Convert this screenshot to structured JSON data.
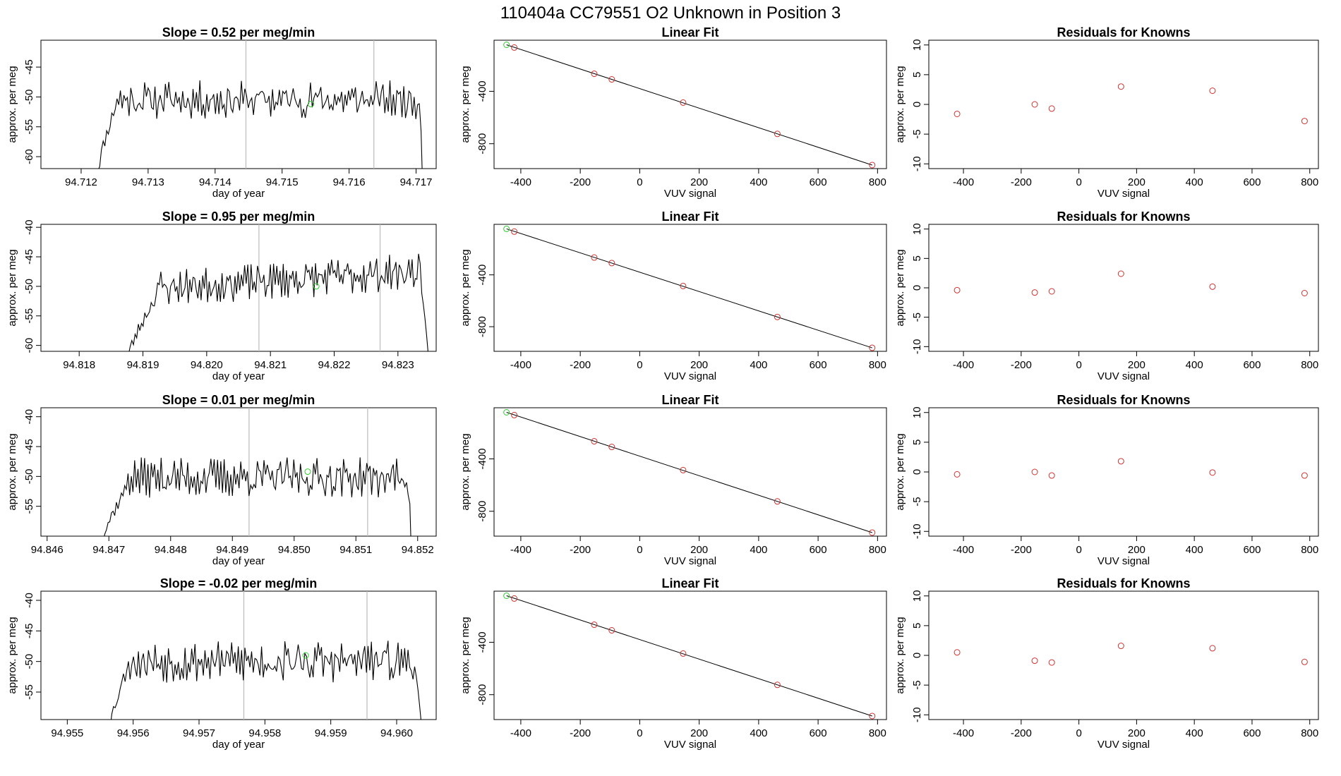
{
  "figure_title": "110404a      CC79551    O2 Unknown in Position  3",
  "colors": {
    "line": "#000000",
    "known_point": "#cc3333",
    "unknown_point": "#33cc33",
    "marker_line": "#bbbbbb"
  },
  "chart_data": [
    {
      "row": 1,
      "time_series": {
        "type": "line",
        "title": "Slope =  0.52  per meg/min",
        "xlabel": "day of year",
        "ylabel": "approx. per meg",
        "xlim": [
          94.7114,
          94.7173
        ],
        "ylim": [
          -62,
          -40.5
        ],
        "xticks": [
          "94.712",
          "94.713",
          "94.714",
          "94.715",
          "94.716",
          "94.717"
        ],
        "yticks": [
          "-60",
          "-55",
          "-50",
          "-45"
        ],
        "start": 94.7122,
        "end": 94.7171,
        "plateau_start": 94.7125,
        "plateau_end": 94.71705,
        "base": -50.5,
        "amp": 2.4,
        "seed": 11,
        "vlines": [
          94.71446,
          94.71637
        ],
        "unknown_point": {
          "x": 94.71543,
          "y": -51.2
        }
      },
      "linear_fit": {
        "type": "scatter",
        "title": "Linear Fit",
        "xlabel": "VUV signal",
        "ylabel": "approx. per meg",
        "xlim": [
          -490,
          830
        ],
        "ylim": [
          -990,
          -10
        ],
        "xticks": [
          "-400",
          "-200",
          "0",
          "200",
          "400",
          "600",
          "800"
        ],
        "yticks": [
          "-400",
          "-800"
        ],
        "fit_line": {
          "x": [
            -448,
            782
          ],
          "y": [
            -45,
            -963
          ]
        },
        "knowns": {
          "x": [
            -422,
            -153,
            -94,
            146,
            463,
            782
          ],
          "y": [
            -66,
            -266,
            -309,
            -486,
            -725,
            -963
          ]
        },
        "unknown": {
          "x": -448,
          "y": -45
        }
      },
      "residuals": {
        "type": "scatter",
        "title": "Residuals for Knowns",
        "xlabel": "VUV signal",
        "ylabel": "approx. per meg",
        "xlim": [
          -520,
          830
        ],
        "ylim": [
          -10.8,
          10.8
        ],
        "xticks": [
          "-400",
          "-200",
          "0",
          "200",
          "400",
          "600",
          "800"
        ],
        "yticks": [
          "-10",
          "-5",
          "0",
          "5",
          "10"
        ],
        "x": [
          -422,
          -153,
          -94,
          146,
          463,
          782
        ],
        "y": [
          -1.6,
          0.0,
          -0.7,
          3.0,
          2.3,
          -2.8
        ]
      }
    },
    {
      "row": 2,
      "time_series": {
        "type": "line",
        "title": "Slope =  0.95  per meg/min",
        "xlabel": "day of year",
        "ylabel": "approx. per meg",
        "xlim": [
          94.8174,
          94.8236
        ],
        "ylim": [
          -61,
          -39.5
        ],
        "xticks": [
          "94.818",
          "94.819",
          "94.820",
          "94.821",
          "94.822",
          "94.823"
        ],
        "yticks": [
          "-60",
          "-55",
          "-50",
          "-45",
          "-40"
        ],
        "start": 94.8187,
        "end": 94.8235,
        "plateau_start": 94.8192,
        "plateau_end": 94.82335,
        "base": -50.3,
        "amp": 2.3,
        "trend": 2.8,
        "seed": 23,
        "vlines": [
          94.82082,
          94.82272
        ],
        "unknown_point": {
          "x": 94.82172,
          "y": -50.0
        }
      },
      "linear_fit": {
        "type": "scatter",
        "title": "Linear Fit",
        "xlabel": "VUV signal",
        "ylabel": "approx. per meg",
        "xlim": [
          -490,
          830
        ],
        "ylim": [
          -990,
          -10
        ],
        "xticks": [
          "-400",
          "-200",
          "0",
          "200",
          "400",
          "600",
          "800"
        ],
        "yticks": [
          "-400",
          "-800"
        ],
        "fit_line": {
          "x": [
            -448,
            782
          ],
          "y": [
            -45,
            -963
          ]
        },
        "knowns": {
          "x": [
            -422,
            -153,
            -94,
            146,
            463,
            782
          ],
          "y": [
            -66,
            -266,
            -309,
            -486,
            -725,
            -963
          ]
        },
        "unknown": {
          "x": -448,
          "y": -45
        }
      },
      "residuals": {
        "type": "scatter",
        "title": "Residuals for Knowns",
        "xlabel": "VUV signal",
        "ylabel": "approx. per meg",
        "xlim": [
          -520,
          830
        ],
        "ylim": [
          -10.8,
          10.8
        ],
        "xticks": [
          "-400",
          "-200",
          "0",
          "200",
          "400",
          "600",
          "800"
        ],
        "yticks": [
          "-10",
          "-5",
          "0",
          "5",
          "10"
        ],
        "x": [
          -422,
          -153,
          -94,
          146,
          463,
          782
        ],
        "y": [
          -0.4,
          -0.8,
          -0.6,
          2.4,
          0.2,
          -0.9
        ]
      }
    },
    {
      "row": 3,
      "time_series": {
        "type": "line",
        "title": "Slope =  0.01  per meg/min",
        "xlabel": "day of year",
        "ylabel": "approx. per meg",
        "xlim": [
          94.8459,
          94.8523
        ],
        "ylim": [
          -60,
          -38.5
        ],
        "xticks": [
          "94.846",
          "94.847",
          "94.848",
          "94.849",
          "94.850",
          "94.851",
          "94.852"
        ],
        "yticks": [
          "-55",
          "-50",
          "-45",
          "-40"
        ],
        "start": 94.8468,
        "end": 94.8519,
        "plateau_start": 94.8473,
        "plateau_end": 94.85185,
        "base": -50.2,
        "amp": 2.5,
        "seed": 37,
        "vlines": [
          94.84927,
          94.85119
        ],
        "unknown_point": {
          "x": 94.85022,
          "y": -49.2
        }
      },
      "linear_fit": {
        "type": "scatter",
        "title": "Linear Fit",
        "xlabel": "VUV signal",
        "ylabel": "approx. per meg",
        "xlim": [
          -490,
          830
        ],
        "ylim": [
          -990,
          -10
        ],
        "xticks": [
          "-400",
          "-200",
          "0",
          "200",
          "400",
          "600",
          "800"
        ],
        "yticks": [
          "-400",
          "-800"
        ],
        "fit_line": {
          "x": [
            -448,
            782
          ],
          "y": [
            -45,
            -963
          ]
        },
        "knowns": {
          "x": [
            -422,
            -153,
            -94,
            146,
            463,
            782
          ],
          "y": [
            -66,
            -266,
            -309,
            -486,
            -725,
            -963
          ]
        },
        "unknown": {
          "x": -448,
          "y": -45
        }
      },
      "residuals": {
        "type": "scatter",
        "title": "Residuals for Knowns",
        "xlabel": "VUV signal",
        "ylabel": "approx. per meg",
        "xlim": [
          -520,
          830
        ],
        "ylim": [
          -10.8,
          10.8
        ],
        "xticks": [
          "-400",
          "-200",
          "0",
          "200",
          "400",
          "600",
          "800"
        ],
        "yticks": [
          "-10",
          "-5",
          "0",
          "5",
          "10"
        ],
        "x": [
          -422,
          -153,
          -94,
          146,
          463,
          782
        ],
        "y": [
          -0.4,
          0.0,
          -0.6,
          1.8,
          -0.1,
          -0.6
        ]
      }
    },
    {
      "row": 4,
      "time_series": {
        "type": "line",
        "title": "Slope =  -0.02  per meg/min",
        "xlabel": "day of year",
        "ylabel": "approx. per meg",
        "xlim": [
          94.9546,
          94.9606
        ],
        "ylim": [
          -59.5,
          -38.5
        ],
        "xticks": [
          "94.955",
          "94.956",
          "94.957",
          "94.958",
          "94.959",
          "94.960"
        ],
        "yticks": [
          "-55",
          "-50",
          "-45",
          "-40"
        ],
        "start": 94.9556,
        "end": 94.9604,
        "plateau_start": 94.9559,
        "plateau_end": 94.96025,
        "base": -50.0,
        "amp": 2.6,
        "seed": 53,
        "vlines": [
          94.95768,
          94.95955
        ],
        "unknown_point": {
          "x": 94.95862,
          "y": -49.0
        }
      },
      "linear_fit": {
        "type": "scatter",
        "title": "Linear Fit",
        "xlabel": "VUV signal",
        "ylabel": "approx. per meg",
        "xlim": [
          -490,
          830
        ],
        "ylim": [
          -990,
          -10
        ],
        "xticks": [
          "-400",
          "-200",
          "0",
          "200",
          "400",
          "600",
          "800"
        ],
        "yticks": [
          "-400",
          "-800"
        ],
        "fit_line": {
          "x": [
            -448,
            782
          ],
          "y": [
            -45,
            -963
          ]
        },
        "knowns": {
          "x": [
            -422,
            -153,
            -94,
            146,
            463,
            782
          ],
          "y": [
            -66,
            -266,
            -309,
            -486,
            -725,
            -963
          ]
        },
        "unknown": {
          "x": -448,
          "y": -45
        }
      },
      "residuals": {
        "type": "scatter",
        "title": "Residuals for Knowns",
        "xlabel": "VUV signal",
        "ylabel": "approx. per meg",
        "xlim": [
          -520,
          830
        ],
        "ylim": [
          -10.8,
          10.8
        ],
        "xticks": [
          "-400",
          "-200",
          "0",
          "200",
          "400",
          "600",
          "800"
        ],
        "yticks": [
          "-10",
          "-5",
          "0",
          "5",
          "10"
        ],
        "x": [
          -422,
          -153,
          -94,
          146,
          463,
          782
        ],
        "y": [
          0.5,
          -0.9,
          -1.2,
          1.6,
          1.2,
          -1.1
        ]
      }
    }
  ]
}
